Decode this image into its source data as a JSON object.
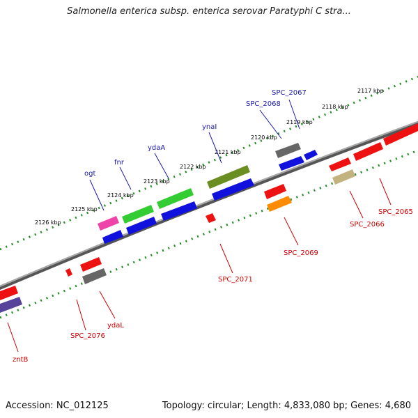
{
  "title": "Salmonella enterica subsp. enterica serovar Paratyphi C stra...",
  "footer": {
    "accession": "Accession: NC_012125",
    "summary": "Topology: circular; Length: 4,833,080 bp; Genes: 4,680"
  },
  "kbp_labels": [
    "2117 kbp",
    "2118 kbp",
    "2119 kbp",
    "2120 kbp",
    "2121 kbp",
    "2122 kbp",
    "2123 kbp",
    "2124 kbp",
    "2125 kbp",
    "2126 kbp"
  ],
  "gene_labels": {
    "top": [
      "SPC_2067",
      "SPC_2068",
      "ynaI",
      "ydaA",
      "fnr",
      "ogt"
    ],
    "bottom": [
      "SPC_2065",
      "SPC_2066",
      "SPC_2069",
      "SPC_2071",
      "ydaL",
      "SPC_2076",
      "zntB"
    ]
  },
  "colors": {
    "backbone": "#888888",
    "red": "#ee1111",
    "blue": "#1111dd",
    "green": "#33cc33",
    "olive": "#6b8e23",
    "grey": "#666666",
    "magenta": "#ee44aa",
    "orange": "#ff8c00",
    "khaki": "#c2b280",
    "slate": "#554499",
    "top_label": "#1a1aaa",
    "bottom_label": "#cc0000",
    "tick": "#228b22"
  }
}
